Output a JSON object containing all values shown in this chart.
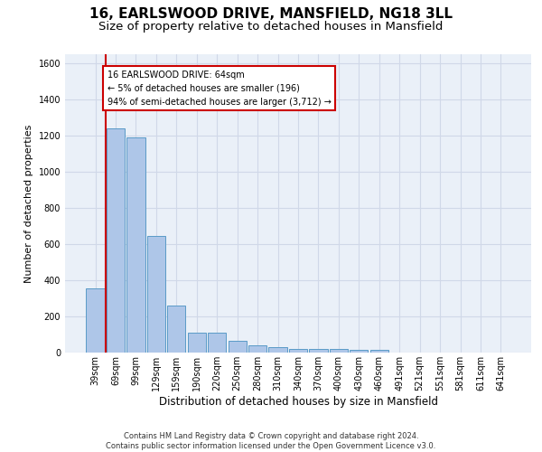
{
  "title": "16, EARLSWOOD DRIVE, MANSFIELD, NG18 3LL",
  "subtitle": "Size of property relative to detached houses in Mansfield",
  "xlabel": "Distribution of detached houses by size in Mansfield",
  "ylabel": "Number of detached properties",
  "footer": "Contains HM Land Registry data © Crown copyright and database right 2024.\nContains public sector information licensed under the Open Government Licence v3.0.",
  "categories": [
    "39sqm",
    "69sqm",
    "99sqm",
    "129sqm",
    "159sqm",
    "190sqm",
    "220sqm",
    "250sqm",
    "280sqm",
    "310sqm",
    "340sqm",
    "370sqm",
    "400sqm",
    "430sqm",
    "460sqm",
    "491sqm",
    "521sqm",
    "551sqm",
    "581sqm",
    "611sqm",
    "641sqm"
  ],
  "values": [
    355,
    1240,
    1190,
    645,
    262,
    112,
    112,
    65,
    40,
    30,
    20,
    18,
    18,
    15,
    15,
    0,
    0,
    0,
    0,
    0,
    0
  ],
  "bar_color": "#aec6e8",
  "bar_edge_color": "#5a9bc7",
  "vline_color": "#cc0000",
  "annotation_text": "16 EARLSWOOD DRIVE: 64sqm\n← 5% of detached houses are smaller (196)\n94% of semi-detached houses are larger (3,712) →",
  "annotation_box_color": "#cc0000",
  "ylim": [
    0,
    1650
  ],
  "yticks": [
    0,
    200,
    400,
    600,
    800,
    1000,
    1200,
    1400,
    1600
  ],
  "grid_color": "#d0d8e8",
  "bg_color": "#eaf0f8",
  "title_fontsize": 11,
  "subtitle_fontsize": 9.5,
  "ylabel_fontsize": 8,
  "xlabel_fontsize": 8.5,
  "footer_fontsize": 6,
  "tick_fontsize": 7,
  "ann_fontsize": 7
}
